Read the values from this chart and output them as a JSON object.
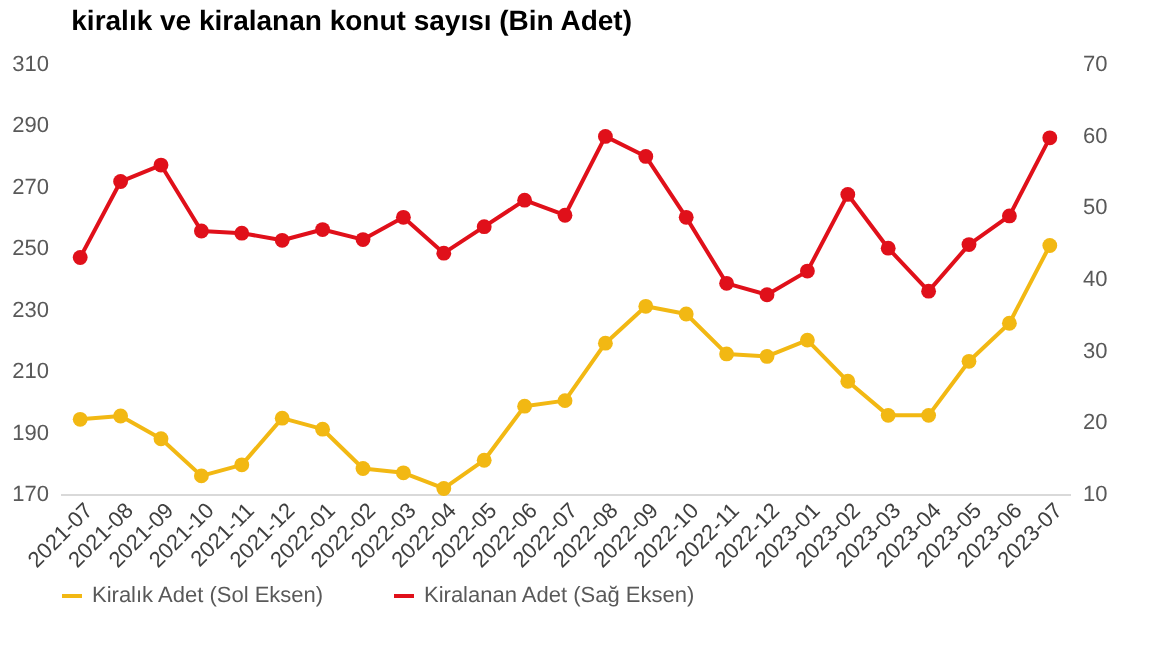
{
  "chart_data": {
    "type": "line",
    "title": "kiralık ve kiralanan konut sayısı (Bin Adet)",
    "categories": [
      "2021-07",
      "2021-08",
      "2021-09",
      "2021-10",
      "2021-11",
      "2021-12",
      "2022-01",
      "2022-02",
      "2022-03",
      "2022-04",
      "2022-05",
      "2022-06",
      "2022-07",
      "2022-08",
      "2022-09",
      "2022-10",
      "2022-11",
      "2022-12",
      "2023-01",
      "2023-02",
      "2023-03",
      "2023-04",
      "2023-05",
      "2023-06",
      "2023-07"
    ],
    "series": [
      {
        "name": "Kiralık Adet (Sol Eksen)",
        "color": "#f2b813",
        "values": [
          194.3,
          195.4,
          188.0,
          175.9,
          179.5,
          194.7,
          191.1,
          178.3,
          176.9,
          171.8,
          181.0,
          198.6,
          200.4,
          219.1,
          231.1,
          228.6,
          215.6,
          214.8,
          220.1,
          206.7,
          195.6,
          195.6,
          213.2,
          225.6,
          250.9
        ]
      },
      {
        "name": "Kiralanan Adet (Sağ Eksen)",
        "color": "#e0101a",
        "axis": "y2",
        "values": [
          43.0,
          53.6,
          55.9,
          46.7,
          46.4,
          45.4,
          46.9,
          45.5,
          48.6,
          43.6,
          47.3,
          51.0,
          48.9,
          59.9,
          57.1,
          48.6,
          39.4,
          37.8,
          41.1,
          51.8,
          44.3,
          38.3,
          44.8,
          48.8,
          59.7
        ]
      }
    ],
    "ylim": [
      170,
      310
    ],
    "yticks": [
      170,
      190,
      210,
      230,
      250,
      270,
      290,
      310
    ],
    "y2lim": [
      10,
      70
    ],
    "y2ticks": [
      10,
      20,
      30,
      40,
      50,
      60,
      70
    ],
    "legend": "bottom",
    "marker": "circle",
    "grid": false
  }
}
